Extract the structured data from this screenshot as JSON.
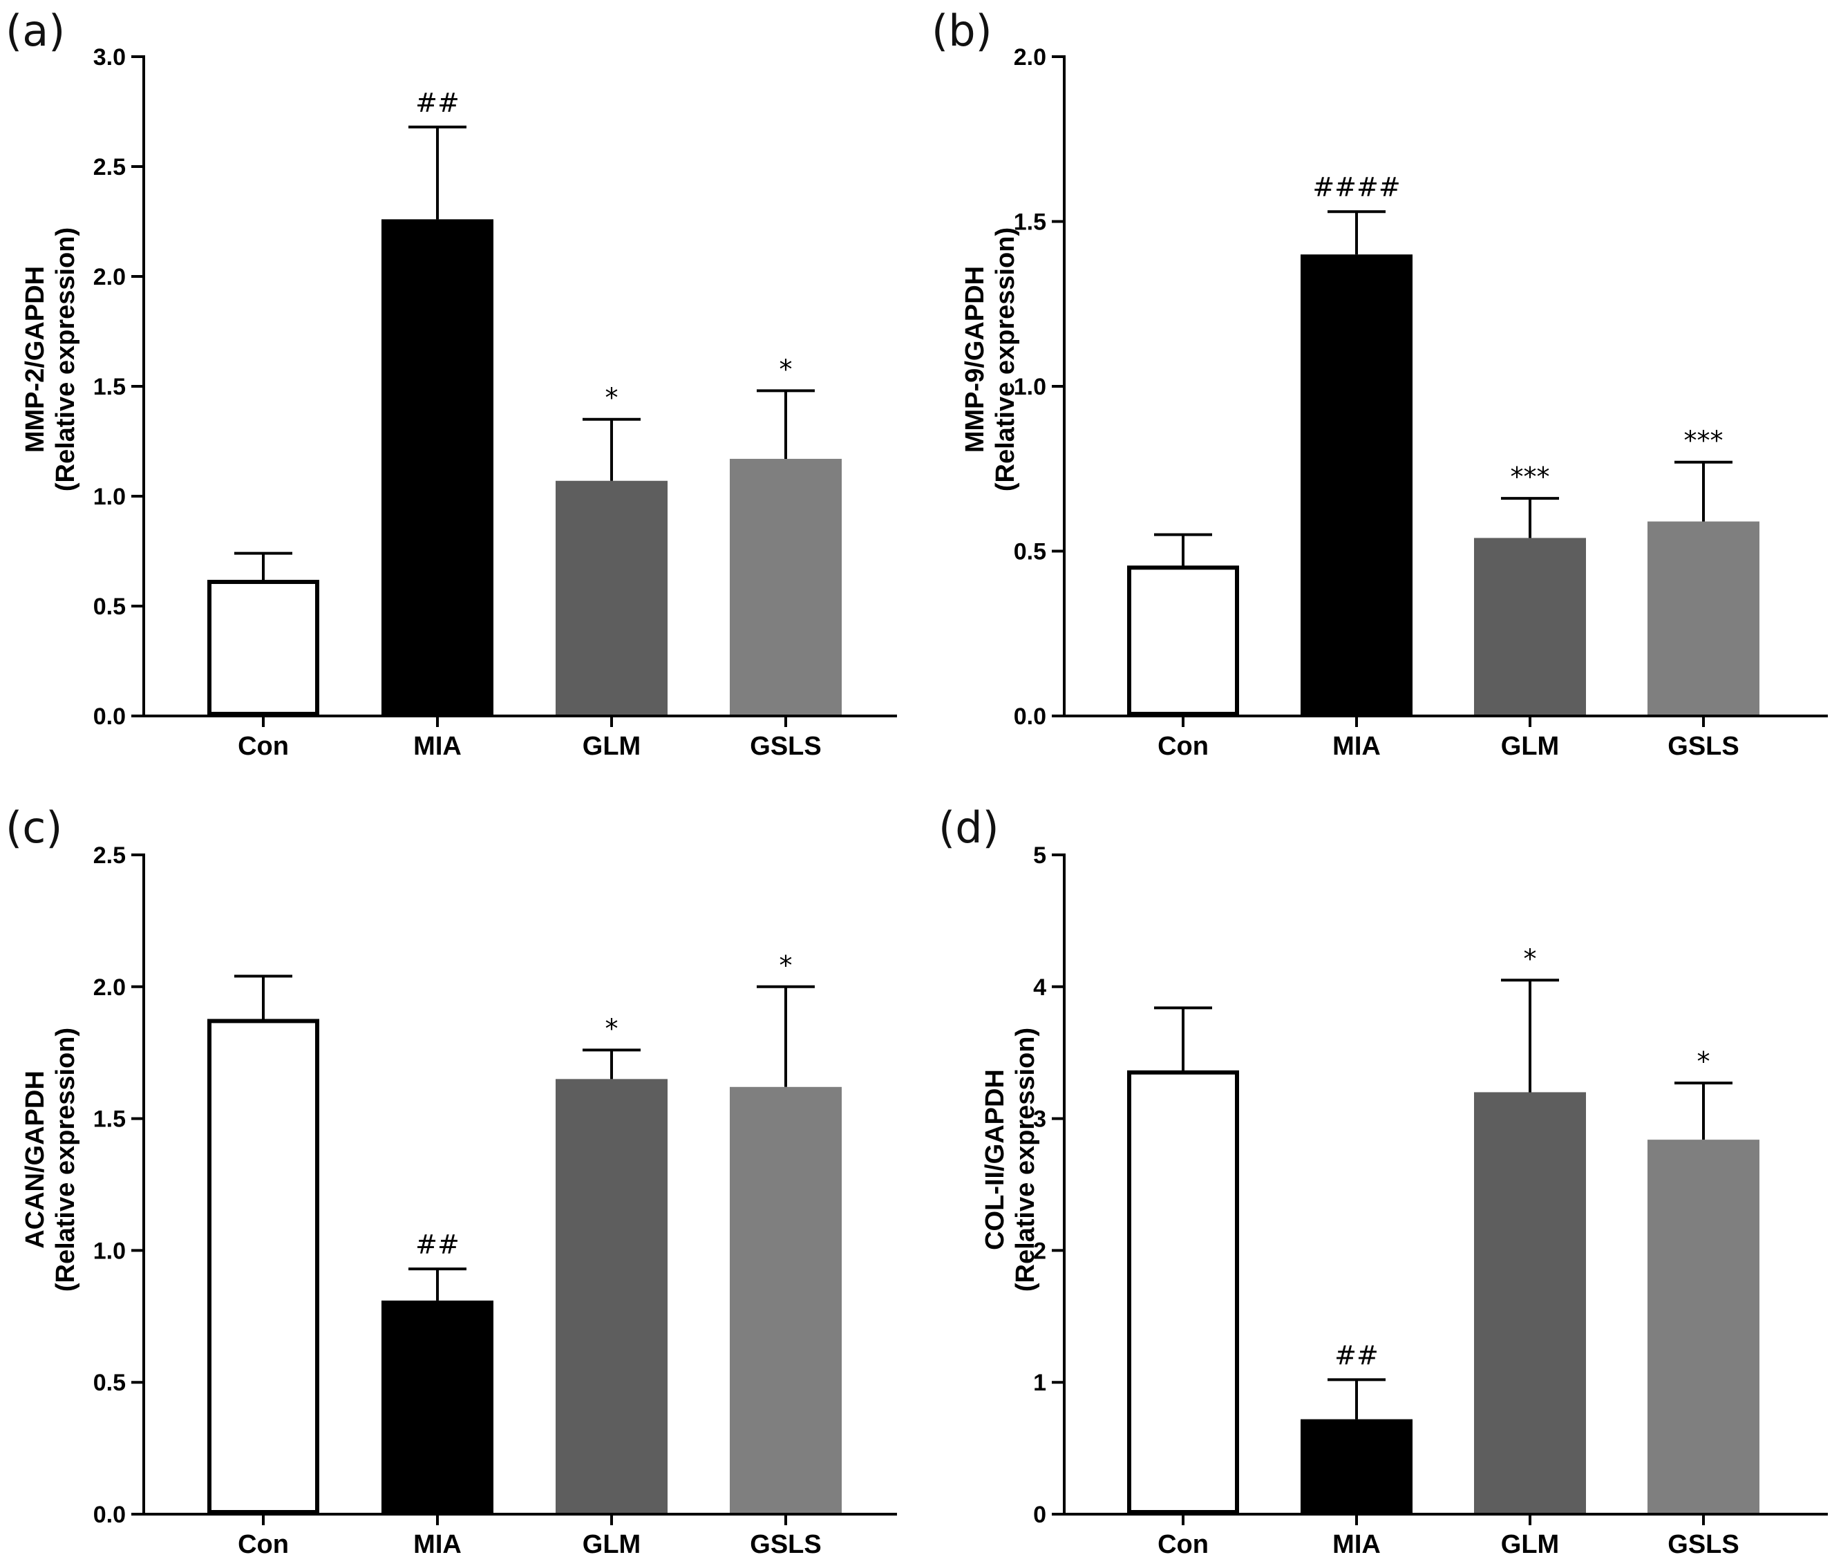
{
  "chart_data": [
    {
      "id": "a",
      "type": "bar",
      "panel_label": "(a)",
      "ylabel_lines": [
        "MMP-2/GAPDH",
        "(Relative expression)"
      ],
      "categories": [
        "Con",
        "MIA",
        "GLM",
        "GSLS"
      ],
      "values": [
        0.61,
        2.26,
        1.07,
        1.17
      ],
      "errors": [
        0.13,
        0.42,
        0.28,
        0.31
      ],
      "significance": [
        "",
        "##",
        "*",
        "*"
      ],
      "bar_colors": [
        "#ffffff",
        "#000000",
        "#5e5e5e",
        "#7f7f7f"
      ],
      "ylim": [
        0,
        3.0
      ],
      "yticks": [
        0,
        0.5,
        1.0,
        1.5,
        2.0,
        2.5,
        3.0
      ],
      "ytick_labels": [
        "0.0",
        "0.5",
        "1.0",
        "1.5",
        "2.0",
        "2.5",
        "3.0"
      ]
    },
    {
      "id": "b",
      "type": "bar",
      "panel_label": "(b)",
      "ylabel_lines": [
        "MMP-9/GAPDH",
        "(Relative expression)"
      ],
      "categories": [
        "Con",
        "MIA",
        "GLM",
        "GSLS"
      ],
      "values": [
        0.45,
        1.4,
        0.54,
        0.59
      ],
      "errors": [
        0.1,
        0.13,
        0.12,
        0.18
      ],
      "significance": [
        "",
        "####",
        "***",
        "***"
      ],
      "bar_colors": [
        "#ffffff",
        "#000000",
        "#5e5e5e",
        "#7f7f7f"
      ],
      "ylim": [
        0,
        2.0
      ],
      "yticks": [
        0,
        0.5,
        1.0,
        1.5,
        2.0
      ],
      "ytick_labels": [
        "0.0",
        "0.5",
        "1.0",
        "1.5",
        "2.0"
      ]
    },
    {
      "id": "c",
      "type": "bar",
      "panel_label": "(c)",
      "ylabel_lines": [
        "ACAN/GAPDH",
        "(Relative expression)"
      ],
      "categories": [
        "Con",
        "MIA",
        "GLM",
        "GSLS"
      ],
      "values": [
        1.87,
        0.81,
        1.65,
        1.62
      ],
      "errors": [
        0.17,
        0.12,
        0.11,
        0.38
      ],
      "significance": [
        "",
        "##",
        "*",
        "*"
      ],
      "bar_colors": [
        "#ffffff",
        "#000000",
        "#5e5e5e",
        "#7f7f7f"
      ],
      "ylim": [
        0,
        2.5
      ],
      "yticks": [
        0,
        0.5,
        1.0,
        1.5,
        2.0,
        2.5
      ],
      "ytick_labels": [
        "0.0",
        "0.5",
        "1.0",
        "1.5",
        "2.0",
        "2.5"
      ]
    },
    {
      "id": "d",
      "type": "bar",
      "panel_label": "(d)",
      "ylabel_lines": [
        "COL-II/GAPDH",
        "(Relative expression)"
      ],
      "categories": [
        "Con",
        "MIA",
        "GLM",
        "GSLS"
      ],
      "values": [
        3.35,
        0.72,
        3.2,
        2.84
      ],
      "errors": [
        0.49,
        0.3,
        0.85,
        0.43
      ],
      "significance": [
        "",
        "##",
        "*",
        "*"
      ],
      "bar_colors": [
        "#ffffff",
        "#000000",
        "#5e5e5e",
        "#7f7f7f"
      ],
      "ylim": [
        0,
        5
      ],
      "yticks": [
        0,
        1,
        2,
        3,
        4,
        5
      ],
      "ytick_labels": [
        "0",
        "1",
        "2",
        "3",
        "4",
        "5"
      ]
    }
  ]
}
